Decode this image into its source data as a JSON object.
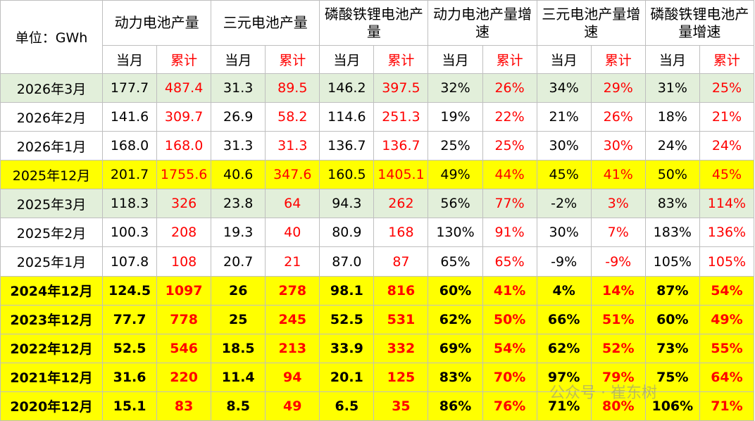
{
  "header": {
    "unit": "单位：GWh",
    "groups": [
      {
        "title": "动力电池产量",
        "columns": [
          "当月",
          "累计"
        ]
      },
      {
        "title": "三元电池产量",
        "columns": [
          "当月",
          "累计"
        ]
      },
      {
        "title": "磷酸铁锂电池产量",
        "columns": [
          "当月",
          "累计"
        ]
      },
      {
        "title": "动力电池产量增速",
        "columns": [
          "当月",
          "累计"
        ]
      },
      {
        "title": "三元电池产量增速",
        "columns": [
          "当月",
          "累计"
        ]
      },
      {
        "title": "磷酸铁锂电池产量增速",
        "columns": [
          "当月",
          "累计"
        ]
      }
    ]
  },
  "table": {
    "rows": [
      {
        "label": "2026年3月",
        "fill": "#e2efda",
        "bold": false,
        "cells": [
          "177.7",
          "487.4",
          "31.3",
          "89.5",
          "146.2",
          "397.5",
          "32%",
          "26%",
          "34%",
          "29%",
          "31%",
          "25%"
        ]
      },
      {
        "label": "2026年2月",
        "fill": "#ffffff",
        "bold": false,
        "cells": [
          "141.6",
          "309.7",
          "26.9",
          "58.2",
          "114.6",
          "251.3",
          "19%",
          "22%",
          "21%",
          "26%",
          "18%",
          "21%"
        ]
      },
      {
        "label": "2026年1月",
        "fill": "#ffffff",
        "bold": false,
        "cells": [
          "168.0",
          "168.0",
          "31.3",
          "31.3",
          "136.7",
          "136.7",
          "25%",
          "25%",
          "30%",
          "30%",
          "24%",
          "24%"
        ]
      },
      {
        "label": "2025年12月",
        "fill": "#ffff00",
        "bold": false,
        "cells": [
          "201.7",
          "1755.6",
          "40.6",
          "347.6",
          "160.5",
          "1405.1",
          "49%",
          "44%",
          "45%",
          "41%",
          "50%",
          "45%"
        ]
      },
      {
        "label": "2025年3月",
        "fill": "#e2efda",
        "bold": false,
        "cells": [
          "118.3",
          "326",
          "23.8",
          "64",
          "94.3",
          "262",
          "56%",
          "77%",
          "-2%",
          "3%",
          "83%",
          "114%"
        ]
      },
      {
        "label": "2025年2月",
        "fill": "#ffffff",
        "bold": false,
        "cells": [
          "100.3",
          "208",
          "19.3",
          "40",
          "80.9",
          "168",
          "130%",
          "91%",
          "30%",
          "7%",
          "183%",
          "136%"
        ]
      },
      {
        "label": "2025年1月",
        "fill": "#ffffff",
        "bold": false,
        "cells": [
          "107.8",
          "108",
          "20.7",
          "21",
          "87.0",
          "87",
          "65%",
          "65%",
          "-9%",
          "-9%",
          "105%",
          "105%"
        ]
      },
      {
        "label": "2024年12月",
        "fill": "#ffff00",
        "bold": true,
        "cells": [
          "124.5",
          "1097",
          "26",
          "278",
          "98.1",
          "816",
          "60%",
          "41%",
          "4%",
          "14%",
          "87%",
          "54%"
        ]
      },
      {
        "label": "2023年12月",
        "fill": "#ffff00",
        "bold": true,
        "cells": [
          "77.7",
          "778",
          "25",
          "245",
          "52.5",
          "531",
          "62%",
          "50%",
          "66%",
          "51%",
          "60%",
          "49%"
        ]
      },
      {
        "label": "2022年12月",
        "fill": "#ffff00",
        "bold": true,
        "cells": [
          "52.5",
          "546",
          "18.5",
          "213",
          "33.9",
          "332",
          "69%",
          "54%",
          "62%",
          "52%",
          "73%",
          "55%"
        ]
      },
      {
        "label": "2021年12月",
        "fill": "#ffff00",
        "bold": true,
        "cells": [
          "31.6",
          "220",
          "11.4",
          "94",
          "20.1",
          "125",
          "83%",
          "70%",
          "97%",
          "79%",
          "75%",
          "64%"
        ]
      },
      {
        "label": "2020年12月",
        "fill": "#ffff00",
        "bold": true,
        "cells": [
          "15.1",
          "83",
          "8.5",
          "49",
          "6.5",
          "35",
          "86%",
          "76%",
          "71%",
          "80%",
          "106%",
          "71%"
        ]
      }
    ]
  },
  "watermark": "公众号 · 崔东树"
}
